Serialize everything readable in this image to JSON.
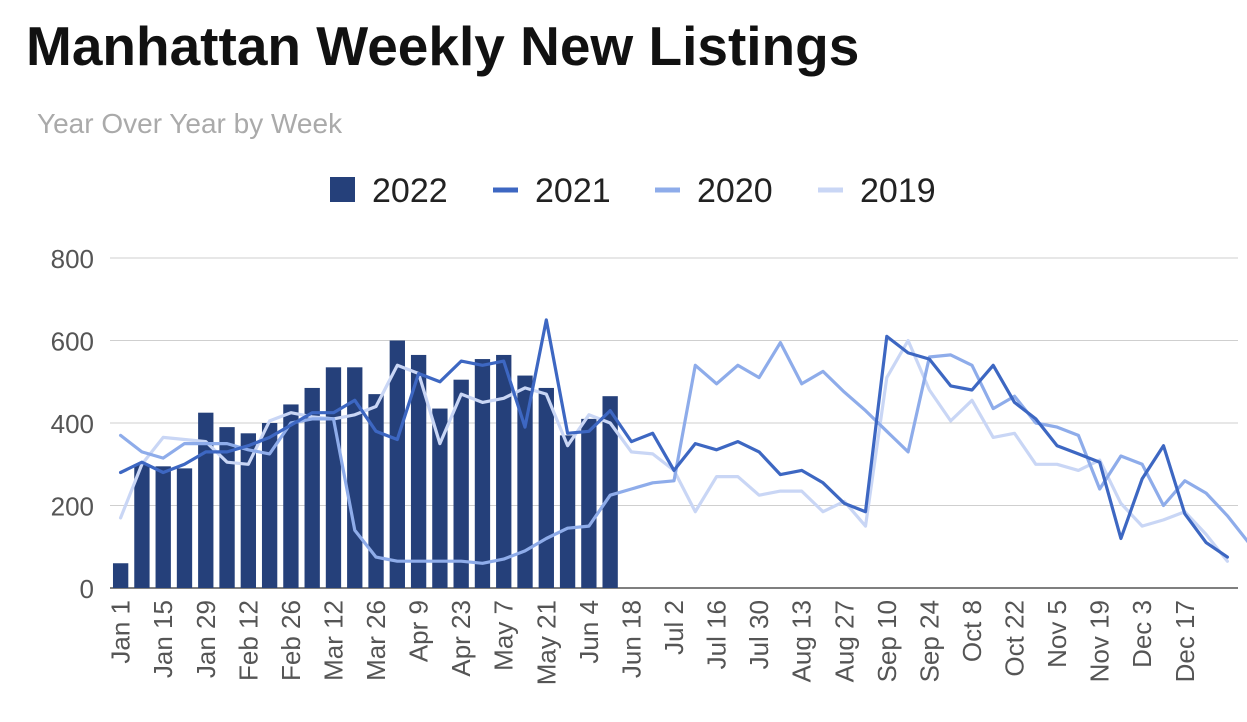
{
  "chart_data": {
    "type": "bar+line",
    "title": "Manhattan Weekly New Listings",
    "subtitle": "Year Over Year by Week",
    "ylim": [
      0,
      800
    ],
    "y_ticks": [
      0,
      200,
      400,
      600,
      800
    ],
    "grid": true,
    "legend_position": "top",
    "x_tick_labels": [
      "Jan 1",
      "Jan 15",
      "Jan 29",
      "Feb 12",
      "Feb 26",
      "Mar 12",
      "Mar 26",
      "Apr 9",
      "Apr 23",
      "May 7",
      "May 21",
      "Jun 4",
      "Jun 18",
      "Jul 2",
      "Jul 16",
      "Jul 30",
      "Aug 13",
      "Aug 27",
      "Sep 10",
      "Sep 24",
      "Oct 8",
      "Oct 22",
      "Nov 5",
      "Nov 19",
      "Dec 3",
      "Dec 17"
    ],
    "series": [
      {
        "name": "2022",
        "kind": "bar",
        "color": "#25407a",
        "values": [
          60,
          300,
          295,
          290,
          425,
          390,
          375,
          400,
          445,
          485,
          535,
          535,
          470,
          600,
          565,
          435,
          505,
          555,
          565,
          515,
          485,
          370,
          410,
          465
        ]
      },
      {
        "name": "2021",
        "kind": "line",
        "color": "#3d67c2",
        "values": [
          280,
          305,
          280,
          300,
          330,
          330,
          345,
          365,
          395,
          425,
          425,
          455,
          380,
          360,
          520,
          500,
          550,
          540,
          550,
          390,
          650,
          375,
          380,
          430,
          355,
          375,
          285,
          350,
          335,
          355,
          330,
          275,
          285,
          255,
          205,
          185,
          610,
          570,
          555,
          490,
          480,
          540,
          450,
          410,
          345,
          325,
          305,
          120,
          265,
          345,
          180,
          110,
          75
        ]
      },
      {
        "name": "2020",
        "kind": "line",
        "color": "#8eacea",
        "values": [
          370,
          330,
          315,
          350,
          350,
          350,
          335,
          325,
          400,
          410,
          410,
          140,
          75,
          65,
          65,
          65,
          65,
          60,
          70,
          90,
          120,
          145,
          150,
          225,
          240,
          255,
          260,
          540,
          495,
          540,
          510,
          595,
          495,
          525,
          475,
          430,
          380,
          330,
          560,
          565,
          540,
          435,
          465,
          400,
          390,
          370,
          240,
          320,
          300,
          200,
          260,
          230,
          175,
          110,
          75
        ]
      },
      {
        "name": "2019",
        "kind": "line",
        "color": "#c9d6f5",
        "values": [
          170,
          300,
          365,
          360,
          355,
          305,
          300,
          405,
          425,
          415,
          410,
          420,
          440,
          540,
          520,
          350,
          470,
          450,
          460,
          485,
          470,
          345,
          420,
          400,
          330,
          325,
          285,
          185,
          270,
          270,
          225,
          235,
          235,
          185,
          210,
          150,
          510,
          600,
          480,
          405,
          455,
          365,
          375,
          300,
          300,
          285,
          310,
          205,
          150,
          165,
          185,
          130,
          65
        ]
      }
    ]
  }
}
